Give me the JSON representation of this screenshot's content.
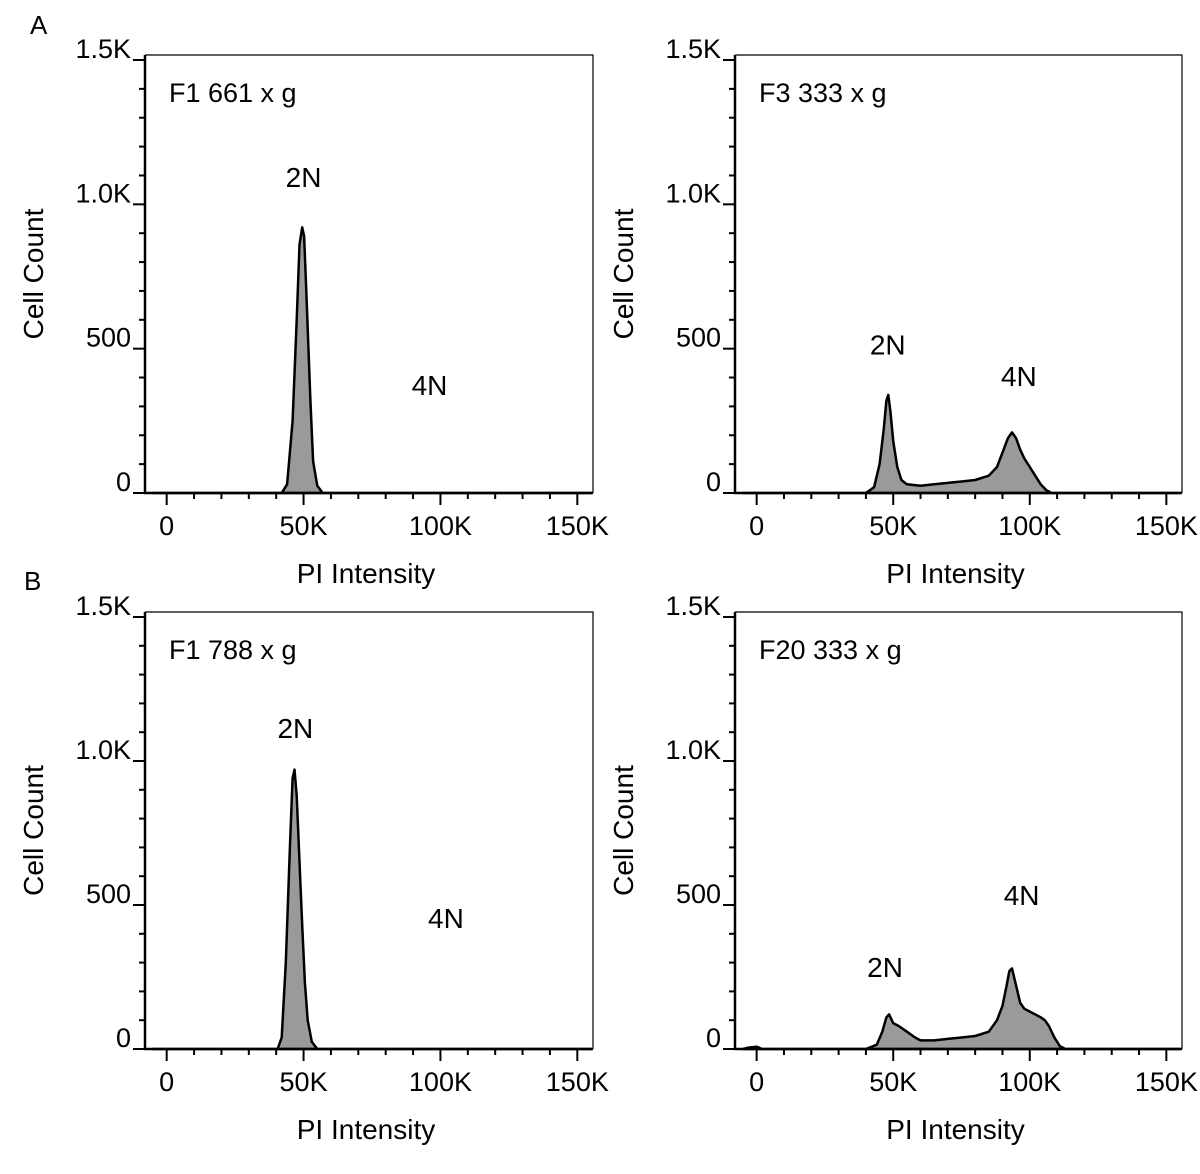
{
  "panel_letters": [
    "A",
    "B"
  ],
  "chart_data": [
    {
      "type": "area",
      "panel": "A",
      "sample_label": "F1 661 x g",
      "xlabel": "PI Intensity",
      "ylabel": "Cell Count",
      "xlim": [
        -5000,
        155000
      ],
      "ylim": [
        0,
        1500
      ],
      "x_ticks": [
        0,
        50000,
        100000,
        150000
      ],
      "x_tick_labels": [
        "0",
        "50K",
        "100K",
        "150K"
      ],
      "y_ticks": [
        0,
        500,
        1000,
        1500
      ],
      "y_tick_labels": [
        "0",
        "500",
        "1.0K",
        "1.5K"
      ],
      "peak_labels": [
        {
          "text": "2N",
          "x": 50000,
          "y": 1060
        },
        {
          "text": "4N",
          "x": 96000,
          "y": 340
        }
      ],
      "points": [
        [
          -5000,
          0
        ],
        [
          42000,
          0
        ],
        [
          44000,
          30
        ],
        [
          46000,
          250
        ],
        [
          47500,
          600
        ],
        [
          48500,
          860
        ],
        [
          49500,
          920
        ],
        [
          50200,
          890
        ],
        [
          51000,
          700
        ],
        [
          52500,
          320
        ],
        [
          53500,
          110
        ],
        [
          55000,
          25
        ],
        [
          57000,
          0
        ],
        [
          155000,
          0
        ]
      ]
    },
    {
      "type": "area",
      "panel": "A",
      "sample_label": "F3 333 x g",
      "xlabel": "PI Intensity",
      "ylabel": "Cell Count",
      "xlim": [
        -5000,
        155000
      ],
      "ylim": [
        0,
        1500
      ],
      "x_ticks": [
        0,
        50000,
        100000,
        150000
      ],
      "x_tick_labels": [
        "0",
        "50K",
        "100K",
        "150K"
      ],
      "y_ticks": [
        0,
        500,
        1000,
        1500
      ],
      "y_tick_labels": [
        "0",
        "500",
        "1.0K",
        "1.5K"
      ],
      "peak_labels": [
        {
          "text": "2N",
          "x": 48000,
          "y": 480
        },
        {
          "text": "4N",
          "x": 96000,
          "y": 370
        }
      ],
      "points": [
        [
          -5000,
          0
        ],
        [
          40000,
          0
        ],
        [
          43000,
          20
        ],
        [
          45000,
          100
        ],
        [
          46500,
          220
        ],
        [
          47500,
          320
        ],
        [
          48200,
          340
        ],
        [
          49000,
          280
        ],
        [
          50000,
          180
        ],
        [
          51500,
          90
        ],
        [
          53000,
          45
        ],
        [
          55000,
          30
        ],
        [
          60000,
          25
        ],
        [
          65000,
          30
        ],
        [
          70000,
          35
        ],
        [
          75000,
          40
        ],
        [
          80000,
          45
        ],
        [
          85000,
          60
        ],
        [
          88000,
          90
        ],
        [
          90000,
          140
        ],
        [
          92000,
          190
        ],
        [
          93500,
          210
        ],
        [
          95000,
          190
        ],
        [
          96500,
          150
        ],
        [
          98000,
          120
        ],
        [
          100000,
          90
        ],
        [
          102000,
          60
        ],
        [
          104000,
          30
        ],
        [
          106000,
          10
        ],
        [
          108000,
          0
        ],
        [
          155000,
          0
        ]
      ]
    },
    {
      "type": "area",
      "panel": "B",
      "sample_label": "F1 788 x g",
      "xlabel": "PI Intensity",
      "ylabel": "Cell Count",
      "xlim": [
        -5000,
        155000
      ],
      "ylim": [
        0,
        1500
      ],
      "x_ticks": [
        0,
        50000,
        100000,
        150000
      ],
      "x_tick_labels": [
        "0",
        "50K",
        "100K",
        "150K"
      ],
      "y_ticks": [
        0,
        500,
        1000,
        1500
      ],
      "y_tick_labels": [
        "0",
        "500",
        "1.0K",
        "1.5K"
      ],
      "peak_labels": [
        {
          "text": "2N",
          "x": 47000,
          "y": 1080
        },
        {
          "text": "4N",
          "x": 102000,
          "y": 420
        }
      ],
      "points": [
        [
          -5000,
          0
        ],
        [
          40500,
          0
        ],
        [
          42000,
          40
        ],
        [
          43500,
          300
        ],
        [
          45000,
          700
        ],
        [
          46000,
          940
        ],
        [
          46700,
          970
        ],
        [
          47500,
          880
        ],
        [
          48500,
          650
        ],
        [
          49500,
          430
        ],
        [
          50500,
          230
        ],
        [
          51500,
          100
        ],
        [
          53000,
          25
        ],
        [
          55000,
          0
        ],
        [
          155000,
          0
        ]
      ]
    },
    {
      "type": "area",
      "panel": "B",
      "sample_label": "F20 333 x g",
      "xlabel": "PI Intensity",
      "ylabel": "Cell Count",
      "xlim": [
        -5000,
        155000
      ],
      "ylim": [
        0,
        1500
      ],
      "x_ticks": [
        0,
        50000,
        100000,
        150000
      ],
      "x_tick_labels": [
        "0",
        "50K",
        "100K",
        "150K"
      ],
      "y_ticks": [
        0,
        500,
        1000,
        1500
      ],
      "y_tick_labels": [
        "0",
        "500",
        "1.0K",
        "1.5K"
      ],
      "peak_labels": [
        {
          "text": "2N",
          "x": 47000,
          "y": 250
        },
        {
          "text": "4N",
          "x": 97000,
          "y": 500
        }
      ],
      "points": [
        [
          -5000,
          0
        ],
        [
          -3000,
          5
        ],
        [
          0,
          8
        ],
        [
          2000,
          0
        ],
        [
          40000,
          0
        ],
        [
          44000,
          15
        ],
        [
          46000,
          60
        ],
        [
          47500,
          110
        ],
        [
          48500,
          120
        ],
        [
          50000,
          90
        ],
        [
          52000,
          80
        ],
        [
          55000,
          60
        ],
        [
          58000,
          40
        ],
        [
          60000,
          30
        ],
        [
          65000,
          30
        ],
        [
          70000,
          35
        ],
        [
          75000,
          40
        ],
        [
          80000,
          45
        ],
        [
          85000,
          60
        ],
        [
          88000,
          100
        ],
        [
          90000,
          150
        ],
        [
          91500,
          220
        ],
        [
          92500,
          270
        ],
        [
          93500,
          280
        ],
        [
          95000,
          220
        ],
        [
          96500,
          160
        ],
        [
          98000,
          140
        ],
        [
          100000,
          130
        ],
        [
          102000,
          120
        ],
        [
          104000,
          110
        ],
        [
          105500,
          100
        ],
        [
          107000,
          80
        ],
        [
          109000,
          40
        ],
        [
          111000,
          10
        ],
        [
          113000,
          0
        ],
        [
          155000,
          0
        ]
      ]
    }
  ]
}
